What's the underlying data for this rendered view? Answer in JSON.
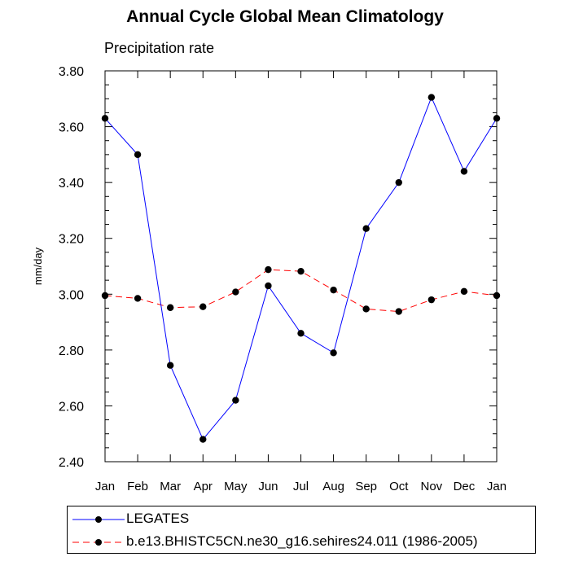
{
  "chart_data": {
    "type": "line",
    "title": "Annual Cycle Global Mean Climatology",
    "subtitle": "Precipitation rate",
    "xlabel": "",
    "ylabel": "mm/day",
    "categories": [
      "Jan",
      "Feb",
      "Mar",
      "Apr",
      "May",
      "Jun",
      "Jul",
      "Aug",
      "Sep",
      "Oct",
      "Nov",
      "Dec",
      "Jan"
    ],
    "ylim": [
      2.4,
      3.8
    ],
    "yticks": [
      "2.40",
      "2.60",
      "2.80",
      "3.00",
      "3.20",
      "3.40",
      "3.60",
      "3.80"
    ],
    "grid": false,
    "legend_position": "bottom",
    "series": [
      {
        "name": "LEGATES",
        "color": "#0000ff",
        "style": "solid",
        "values": [
          3.63,
          3.5,
          2.745,
          2.48,
          2.62,
          3.03,
          2.86,
          2.79,
          3.235,
          3.4,
          3.705,
          3.44,
          3.63
        ]
      },
      {
        "name": "b.e13.BHISTC5CN.ne30_g16.sehires24.011 (1986-2005)",
        "color": "#ff0000",
        "style": "dashed",
        "values": [
          2.995,
          2.985,
          2.952,
          2.955,
          3.008,
          3.088,
          3.082,
          3.015,
          2.947,
          2.938,
          2.98,
          3.01,
          2.995
        ]
      }
    ]
  }
}
